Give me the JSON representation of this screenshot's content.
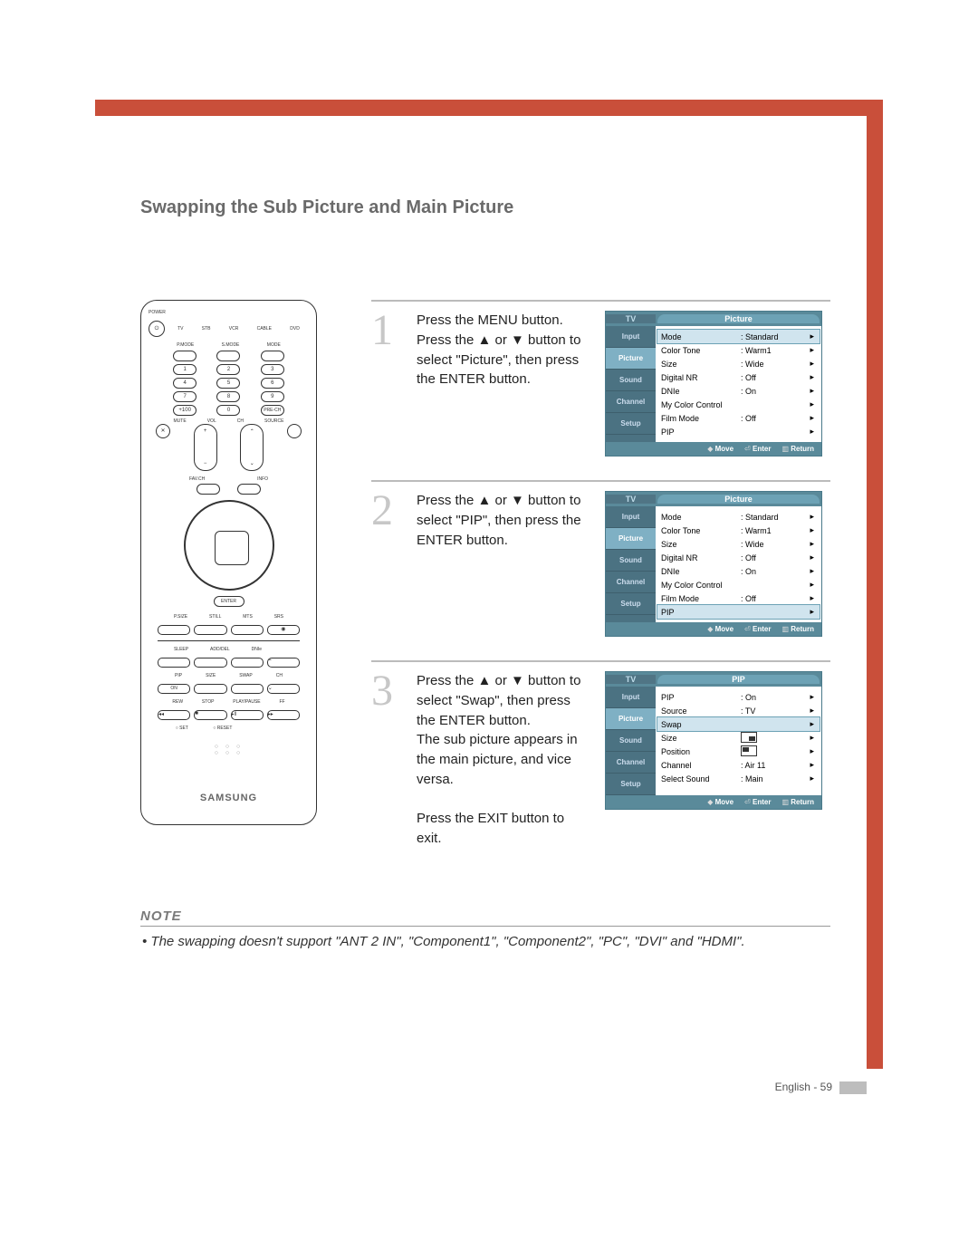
{
  "title": "Swapping the Sub Picture and Main Picture",
  "brand": "SAMSUNG",
  "remote_mode_labels": [
    "TV",
    "STB",
    "VCR",
    "CABLE",
    "DVD"
  ],
  "remote_top_labels": [
    "POWER"
  ],
  "remote_row1_labels": [
    "P.MODE",
    "S.MODE",
    "MODE"
  ],
  "steps": [
    {
      "num": "1",
      "text": "Press the MENU button. Press the ▲ or ▼ button to select \"Picture\", then press the ENTER button."
    },
    {
      "num": "2",
      "text": "Press the ▲ or ▼ button to select \"PIP\", then press the ENTER button."
    },
    {
      "num": "3",
      "text": "Press the ▲ or ▼ button to select \"Swap\", then press the ENTER button.\nThe sub picture appears in the main picture, and vice versa.\n\nPress the EXIT button to exit."
    }
  ],
  "osd": {
    "tv_label": "TV",
    "tabs": [
      "Input",
      "Picture",
      "Sound",
      "Channel",
      "Setup"
    ],
    "picture": {
      "title": "Picture",
      "rows": [
        {
          "label": "Mode",
          "value": ": Standard"
        },
        {
          "label": "Color Tone",
          "value": ": Warm1"
        },
        {
          "label": "Size",
          "value": ": Wide"
        },
        {
          "label": "Digital NR",
          "value": ": Off"
        },
        {
          "label": "DNIe",
          "value": ": On"
        },
        {
          "label": "My Color Control",
          "value": ""
        },
        {
          "label": "Film Mode",
          "value": ": Off"
        },
        {
          "label": "PIP",
          "value": ""
        }
      ]
    },
    "pip": {
      "title": "PIP",
      "rows": [
        {
          "label": "PIP",
          "value": ": On"
        },
        {
          "label": "Source",
          "value": ": TV"
        },
        {
          "label": "Swap",
          "value": ""
        },
        {
          "label": "Size",
          "value": "icon1"
        },
        {
          "label": "Position",
          "value": "icon2"
        },
        {
          "label": "Channel",
          "value": ": Air 11"
        },
        {
          "label": "Select Sound",
          "value": ": Main"
        }
      ]
    },
    "footer": {
      "move": "Move",
      "enter": "Enter",
      "return": "Return"
    }
  },
  "note": {
    "label": "NOTE",
    "text": "• The swapping doesn't support \"ANT 2 IN\", \"Component1\", \"Component2\", \"PC\", \"DVI\" and \"HDMI\"."
  },
  "page_num": "English - 59",
  "colors": {
    "accent": "#c94f3a",
    "title_gray": "#6a6a6a",
    "step_num_gray": "#c7c7c7",
    "osd_blue": "#5a8a9a"
  }
}
